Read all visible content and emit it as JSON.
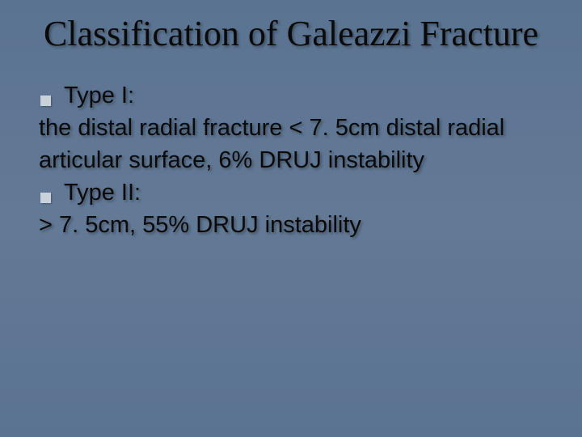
{
  "slide": {
    "background_gradient": [
      "#5a7391",
      "#637a96",
      "#5a7391"
    ],
    "title": "Classification of Galeazzi Fracture",
    "title_font": "Times New Roman",
    "title_fontsize": 44,
    "title_color": "#0a0a0a",
    "body_font": "Verdana",
    "body_fontsize": 29,
    "body_color": "#0a0a0a",
    "bullet_color": "#c9d2db",
    "bullet_size": 13,
    "items": [
      {
        "bullet": true,
        "text": "Type I:"
      },
      {
        "bullet": false,
        "text": "the distal radial fracture < 7. 5cm distal radial articular surface, 6% DRUJ instability"
      },
      {
        "bullet": true,
        "text": "Type II:"
      },
      {
        "bullet": false,
        "text": "> 7. 5cm, 55% DRUJ instability"
      }
    ]
  }
}
